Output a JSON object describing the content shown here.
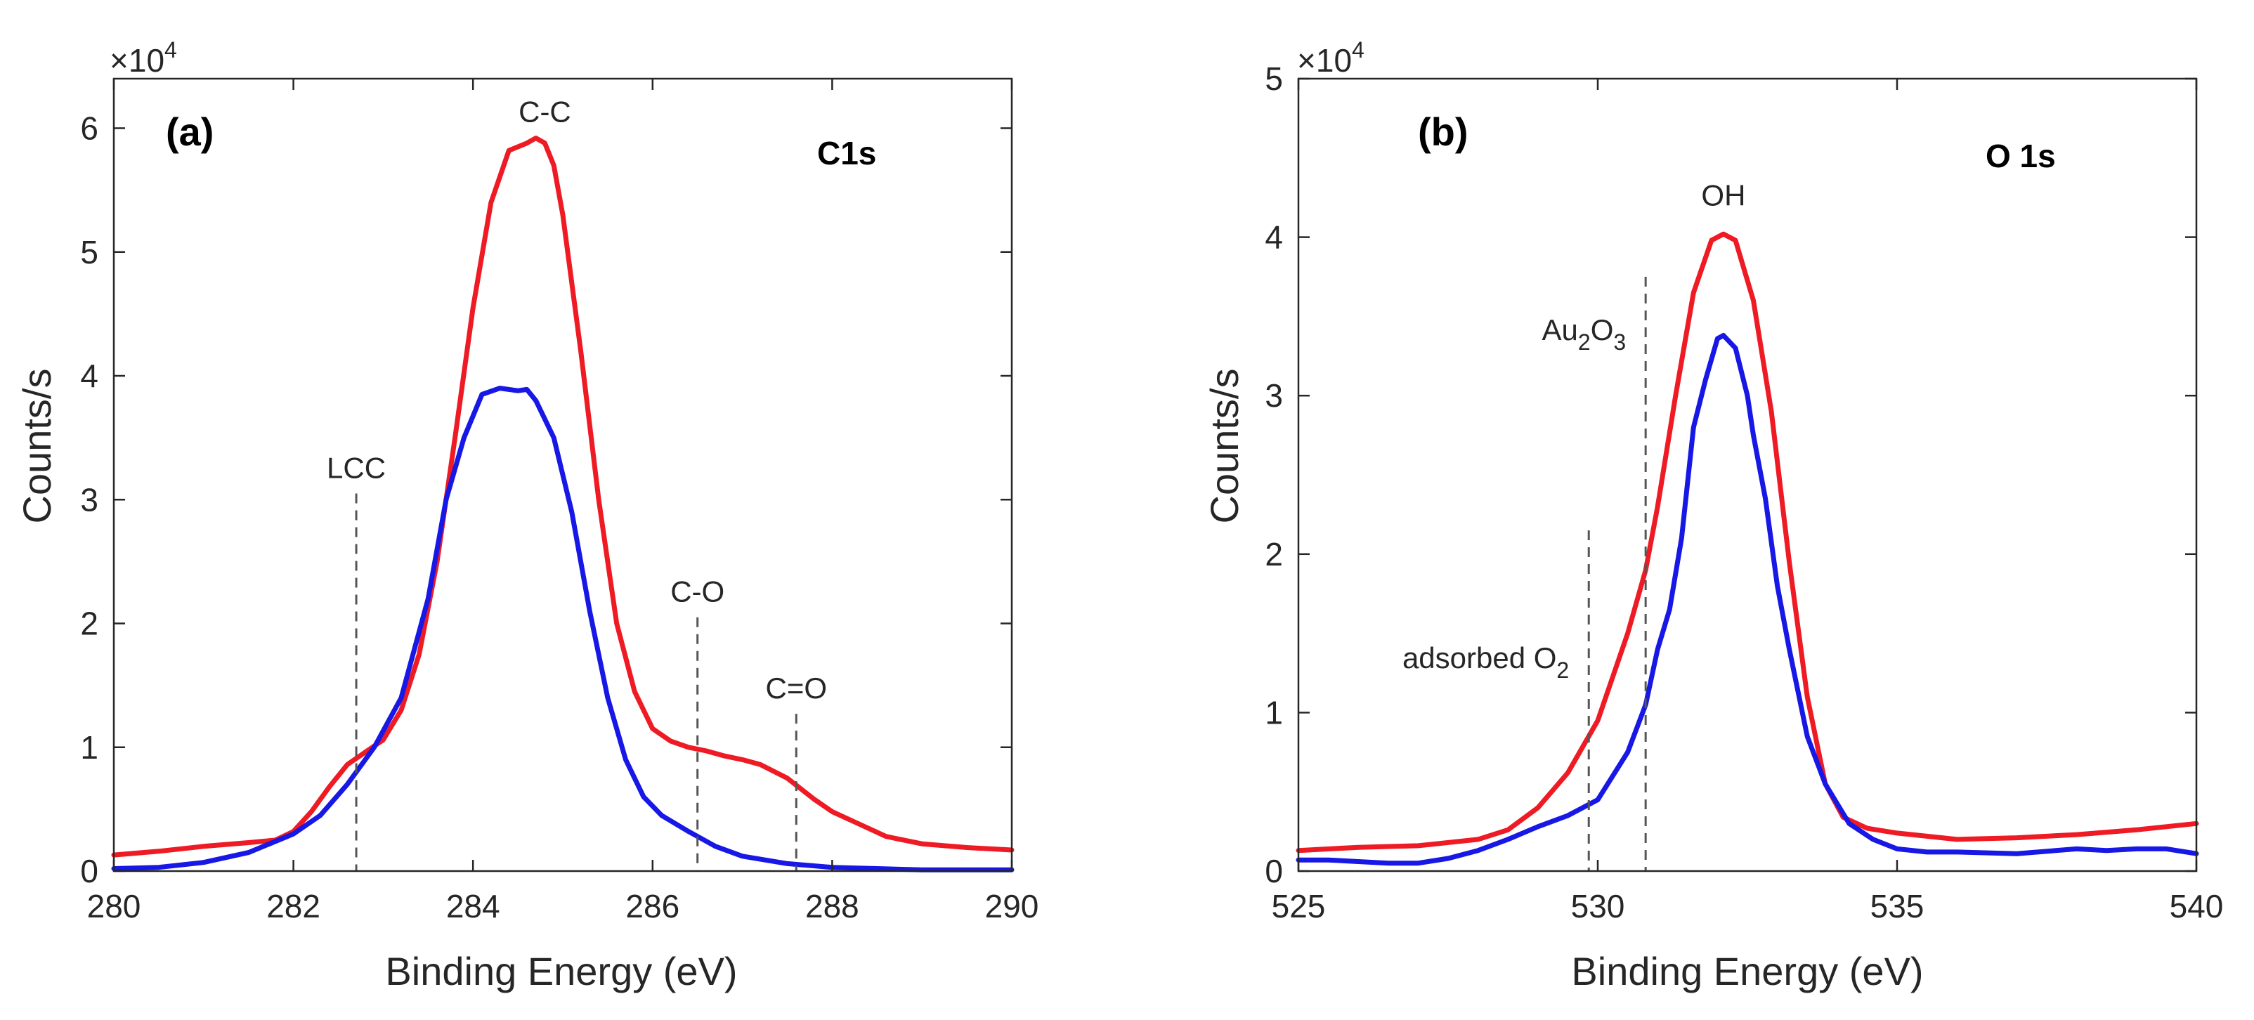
{
  "chart_data": [
    {
      "type": "line",
      "panel_tag": "(a)",
      "label": "C1s",
      "xlabel": "Binding Energy (eV)",
      "ylabel": "Counts/s",
      "y_multiplier": "×10",
      "y_multiplier_exp": "4",
      "xlim": [
        280,
        290
      ],
      "ylim": [
        0,
        6.4
      ],
      "xticks": [
        280,
        282,
        284,
        286,
        288,
        290
      ],
      "yticks": [
        0,
        1,
        2,
        3,
        4,
        5,
        6
      ],
      "grid": false,
      "series": [
        {
          "name": "red",
          "color": "#ee1b24",
          "x": [
            280,
            280.5,
            281,
            281.5,
            281.8,
            282,
            282.2,
            282.4,
            282.6,
            282.8,
            283.0,
            283.2,
            283.4,
            283.6,
            283.8,
            284.0,
            284.2,
            284.4,
            284.6,
            284.7,
            284.8,
            284.9,
            285.0,
            285.2,
            285.4,
            285.6,
            285.8,
            286.0,
            286.2,
            286.4,
            286.6,
            286.8,
            287.0,
            287.2,
            287.5,
            287.8,
            288.0,
            288.3,
            288.6,
            289.0,
            289.5,
            290
          ],
          "y": [
            0.13,
            0.16,
            0.2,
            0.23,
            0.25,
            0.32,
            0.48,
            0.68,
            0.86,
            0.96,
            1.06,
            1.3,
            1.75,
            2.5,
            3.5,
            4.55,
            5.4,
            5.82,
            5.88,
            5.92,
            5.88,
            5.7,
            5.3,
            4.2,
            3.0,
            2.0,
            1.45,
            1.15,
            1.05,
            1.0,
            0.97,
            0.93,
            0.9,
            0.86,
            0.75,
            0.58,
            0.48,
            0.38,
            0.28,
            0.22,
            0.19,
            0.17
          ]
        },
        {
          "name": "blue",
          "color": "#1717e6",
          "x": [
            280,
            280.5,
            281,
            281.5,
            282,
            282.3,
            282.6,
            282.9,
            283.2,
            283.5,
            283.7,
            283.9,
            284.1,
            284.3,
            284.5,
            284.6,
            284.7,
            284.9,
            285.1,
            285.3,
            285.5,
            285.7,
            285.9,
            286.1,
            286.4,
            286.7,
            287.0,
            287.5,
            288.0,
            288.5,
            289,
            290
          ],
          "y": [
            0.02,
            0.03,
            0.07,
            0.15,
            0.3,
            0.45,
            0.7,
            1.0,
            1.4,
            2.2,
            3.0,
            3.5,
            3.85,
            3.9,
            3.88,
            3.89,
            3.8,
            3.5,
            2.9,
            2.1,
            1.4,
            0.9,
            0.6,
            0.45,
            0.32,
            0.2,
            0.12,
            0.06,
            0.03,
            0.02,
            0.01,
            0.01
          ]
        }
      ],
      "markers": [
        {
          "label": "LCC",
          "x": 282.7,
          "y_top": 3.05
        },
        {
          "label": "C-O",
          "x": 286.5,
          "y_top": 2.05
        },
        {
          "label": "C=O",
          "x": 287.6,
          "y_top": 1.27
        }
      ],
      "peak_label": {
        "text": "C-C",
        "x": 284.8,
        "y": 6.05
      }
    },
    {
      "type": "line",
      "panel_tag": "(b)",
      "label": "O 1s",
      "xlabel": "Binding Energy (eV)",
      "ylabel": "Counts/s",
      "y_multiplier": "×10",
      "y_multiplier_exp": "4",
      "xlim": [
        525,
        540
      ],
      "ylim": [
        0,
        5
      ],
      "xticks": [
        525,
        530,
        535,
        540
      ],
      "yticks": [
        0,
        1,
        2,
        3,
        4,
        5
      ],
      "grid": false,
      "series": [
        {
          "name": "red",
          "color": "#ee1b24",
          "x": [
            525,
            526,
            527,
            528,
            528.5,
            529,
            529.5,
            530,
            530.5,
            530.8,
            531,
            531.3,
            531.6,
            531.9,
            532.1,
            532.3,
            532.6,
            532.9,
            533.2,
            533.5,
            533.8,
            534.1,
            534.5,
            535,
            536,
            537,
            538,
            539,
            540
          ],
          "y": [
            0.13,
            0.15,
            0.16,
            0.2,
            0.26,
            0.4,
            0.62,
            0.95,
            1.5,
            1.9,
            2.3,
            3.0,
            3.65,
            3.98,
            4.02,
            3.98,
            3.6,
            2.9,
            1.95,
            1.1,
            0.55,
            0.34,
            0.27,
            0.24,
            0.2,
            0.21,
            0.23,
            0.26,
            0.3
          ]
        },
        {
          "name": "blue",
          "color": "#1717e6",
          "x": [
            525,
            525.5,
            526,
            526.5,
            527,
            527.5,
            528,
            528.5,
            529,
            529.5,
            530,
            530.5,
            530.8,
            531,
            531.2,
            531.4,
            531.6,
            531.8,
            532.0,
            532.1,
            532.3,
            532.5,
            532.6,
            532.8,
            533.0,
            533.2,
            533.5,
            533.8,
            534.2,
            534.6,
            535,
            535.5,
            536,
            537,
            538,
            538.5,
            539,
            539.5,
            540
          ],
          "y": [
            0.07,
            0.07,
            0.06,
            0.05,
            0.05,
            0.08,
            0.13,
            0.2,
            0.28,
            0.35,
            0.45,
            0.75,
            1.05,
            1.4,
            1.65,
            2.1,
            2.8,
            3.1,
            3.36,
            3.38,
            3.3,
            3.0,
            2.75,
            2.35,
            1.8,
            1.4,
            0.85,
            0.55,
            0.3,
            0.2,
            0.14,
            0.12,
            0.12,
            0.11,
            0.14,
            0.13,
            0.14,
            0.14,
            0.11
          ]
        }
      ],
      "markers": [
        {
          "label": "adsorbed O",
          "sub": "2",
          "x": 529.85,
          "y_top": 2.15
        },
        {
          "label": "Au",
          "sub": "2",
          "label2": "O",
          "sub2": "3",
          "x": 530.8,
          "y_top": 3.75
        }
      ],
      "peak_label": {
        "text": "OH",
        "x": 532.1,
        "y": 4.2
      }
    }
  ]
}
